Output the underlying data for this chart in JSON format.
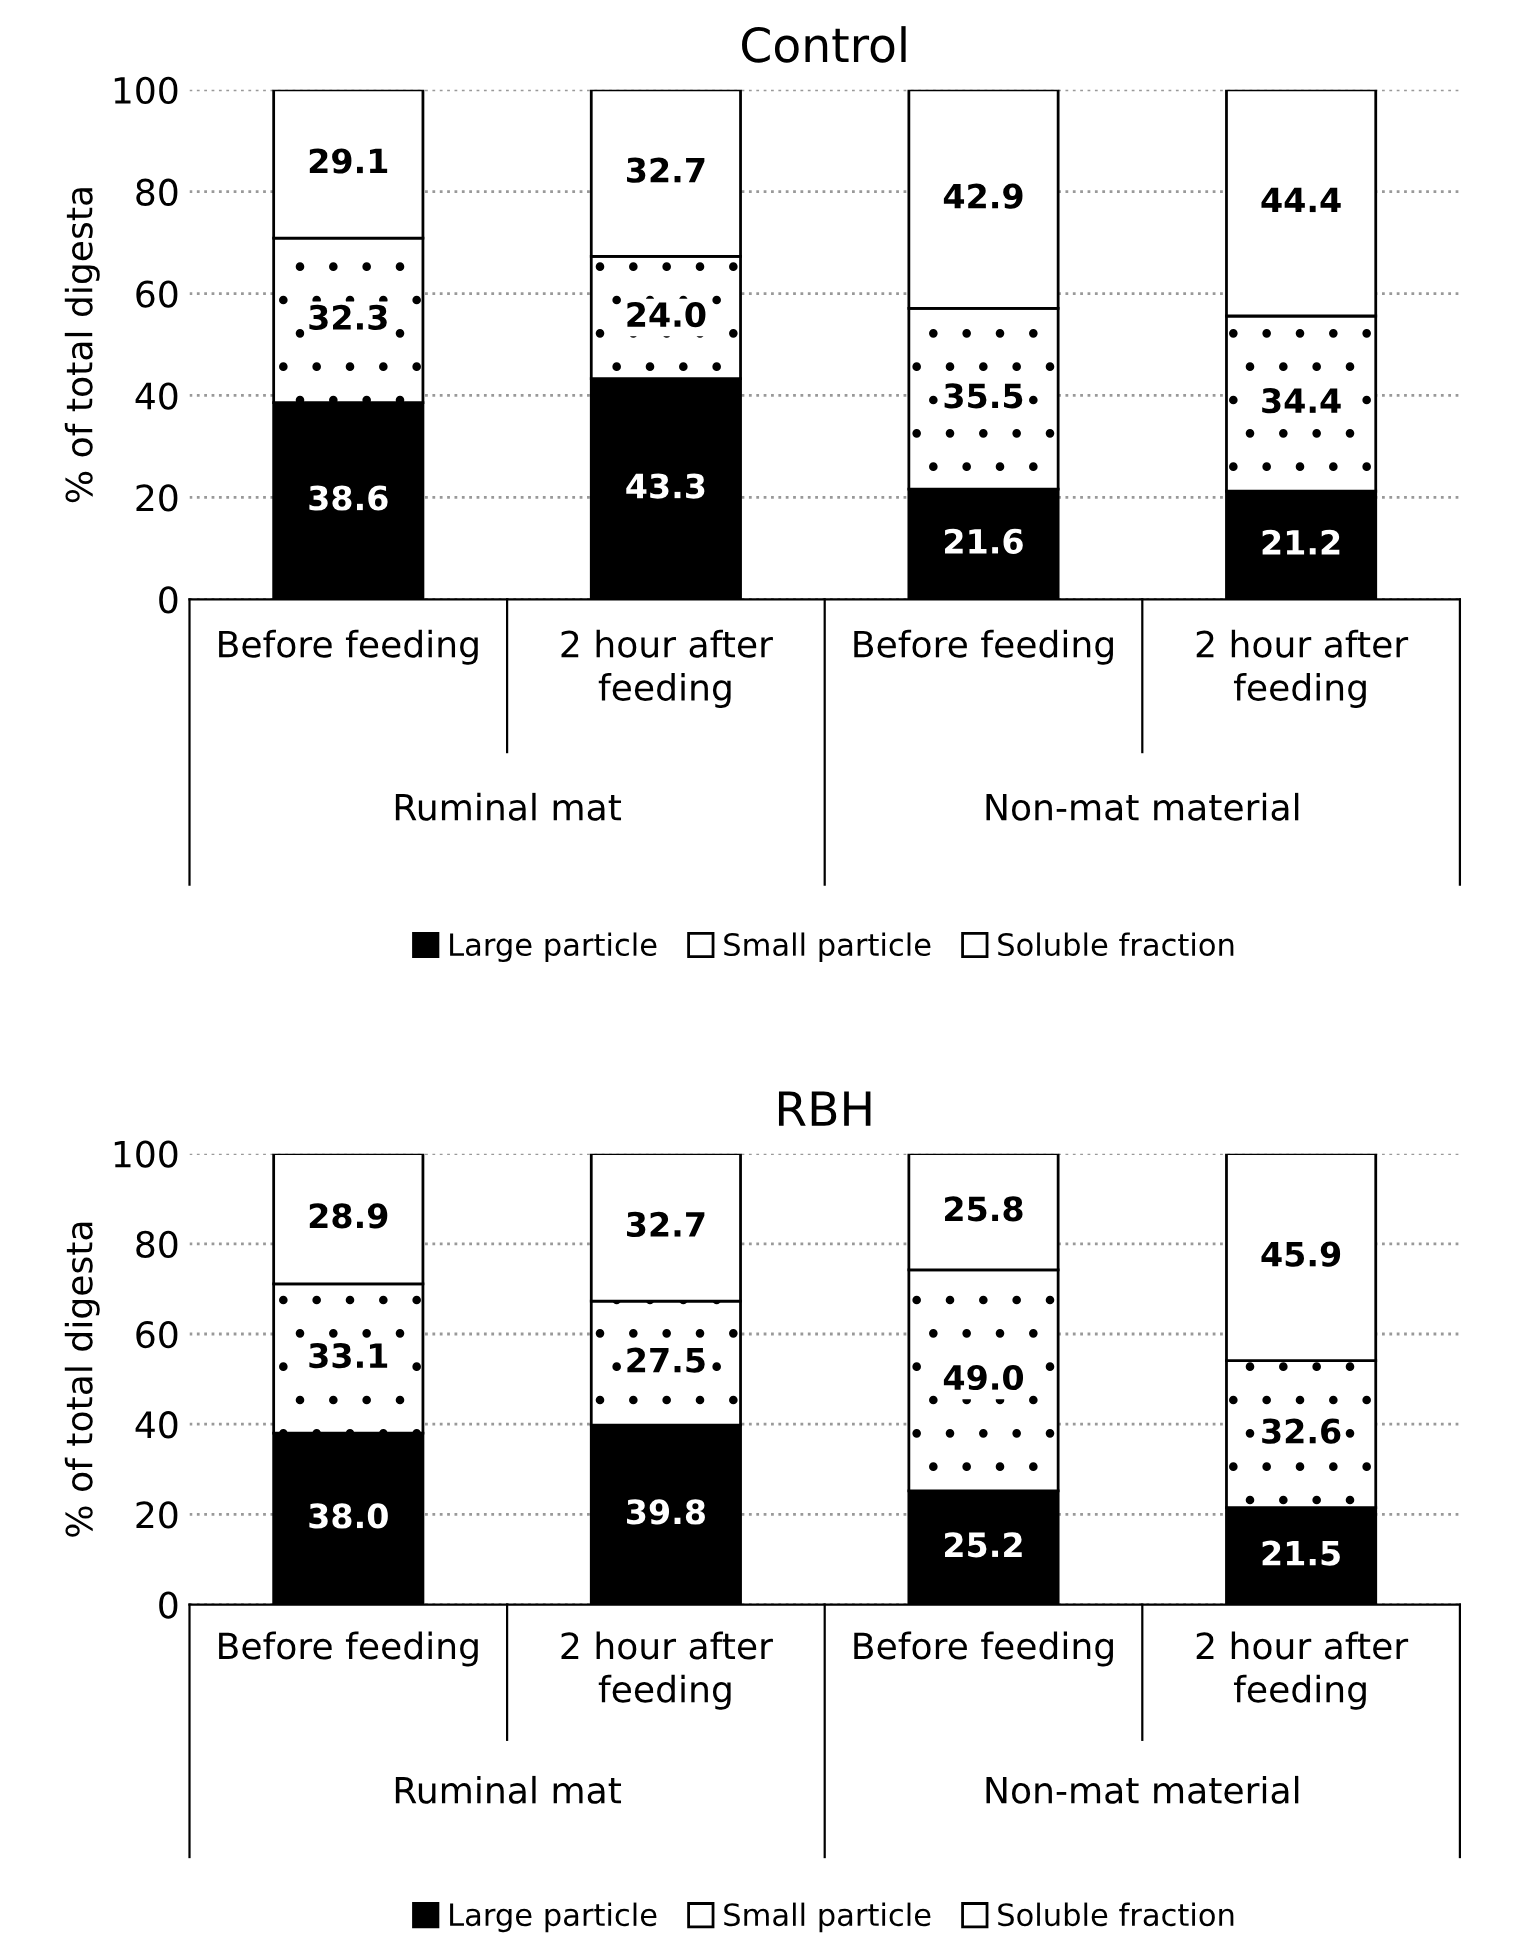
{
  "chart_data": [
    {
      "type": "bar",
      "title": "Control",
      "ylabel": "% of total digesta",
      "categories": [
        "Before feeding",
        "2 hour after feeding",
        "Before feeding",
        "2 hour after feeding"
      ],
      "annotations": [
        "Ruminal mat",
        "Non-mat material"
      ],
      "stacked": true,
      "ylim": [
        0,
        100
      ],
      "yticks": [
        0,
        20,
        40,
        60,
        80,
        100
      ],
      "grid": "y",
      "legend": "bottom",
      "data_labels": true,
      "series": [
        {
          "name": "Large particle",
          "color": "#000000",
          "values": [
            38.6,
            43.3,
            21.6,
            21.2
          ],
          "value_labels": [
            "38.6",
            "43.3",
            "21.6",
            "21.2"
          ]
        },
        {
          "name": "Small particle",
          "color": "#ffffff",
          "values": [
            32.3,
            24.0,
            35.5,
            34.4
          ],
          "value_labels": [
            "32.3",
            "24.0",
            "35.5",
            "34.4"
          ]
        },
        {
          "name": "Soluble fraction",
          "color": "#ffffff",
          "values": [
            29.1,
            32.7,
            42.9,
            44.4
          ],
          "value_labels": [
            "29.1",
            "32.7",
            "42.9",
            "44.4"
          ]
        }
      ]
    },
    {
      "type": "bar",
      "title": "RBH",
      "ylabel": "% of total digesta",
      "categories": [
        "Before feeding",
        "2 hour after feeding",
        "Before feeding",
        "2 hour after feeding"
      ],
      "annotations": [
        "Ruminal mat",
        "Non-mat material"
      ],
      "stacked": true,
      "ylim": [
        0,
        100
      ],
      "yticks": [
        0,
        20,
        40,
        60,
        80,
        100
      ],
      "grid": "y",
      "legend": "bottom",
      "data_labels": true,
      "series": [
        {
          "name": "Large particle",
          "color": "#000000",
          "values": [
            38.0,
            39.8,
            25.2,
            21.5
          ],
          "value_labels": [
            "38.0",
            "39.8",
            "25.2",
            "21.5"
          ]
        },
        {
          "name": "Small particle",
          "color": "#ffffff",
          "values": [
            33.1,
            27.5,
            49.0,
            32.6
          ],
          "value_labels": [
            "33.1",
            "27.5",
            "49.0",
            "32.6"
          ]
        },
        {
          "name": "Soluble fraction",
          "color": "#ffffff",
          "values": [
            28.9,
            32.7,
            25.8,
            45.9
          ],
          "value_labels": [
            "28.9",
            "32.7",
            "25.8",
            "45.9"
          ]
        }
      ]
    }
  ]
}
